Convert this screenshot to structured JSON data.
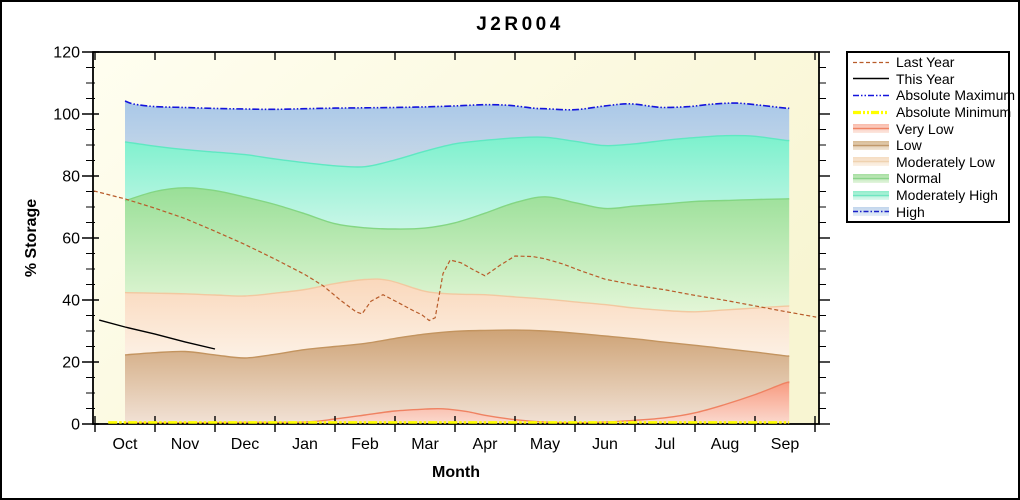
{
  "chart_data": {
    "type": "area",
    "title": "J2R004",
    "xlabel": "Month",
    "ylabel": "% Storage",
    "ylim": [
      0,
      120
    ],
    "y_major_step": 20,
    "y_minor_step": 5,
    "grid": "off",
    "legend_position": "outside-right",
    "categories": [
      "Oct",
      "Nov",
      "Dec",
      "Jan",
      "Feb",
      "Mar",
      "Apr",
      "May",
      "Jun",
      "Jul",
      "Aug",
      "Sep"
    ],
    "yticks": [
      0,
      20,
      40,
      60,
      80,
      100,
      120
    ],
    "boundaries": {
      "absolute_maximum": [
        [
          0,
          104.2
        ],
        [
          0.15,
          103.2
        ],
        [
          0.5,
          102.4
        ],
        [
          1,
          102.1
        ],
        [
          1.5,
          101.8
        ],
        [
          2,
          101.6
        ],
        [
          2.5,
          101.5
        ],
        [
          3,
          101.7
        ],
        [
          3.5,
          101.9
        ],
        [
          4,
          102.0
        ],
        [
          4.5,
          102.1
        ],
        [
          5,
          102.3
        ],
        [
          5.5,
          102.6
        ],
        [
          6,
          103.0
        ],
        [
          6.4,
          102.8
        ],
        [
          6.8,
          101.9
        ],
        [
          7,
          101.7
        ],
        [
          7.5,
          101.4
        ],
        [
          8,
          102.6
        ],
        [
          8.4,
          103.3
        ],
        [
          8.8,
          102.4
        ],
        [
          9,
          102.1
        ],
        [
          9.4,
          102.4
        ],
        [
          9.8,
          103.2
        ],
        [
          10.2,
          103.5
        ],
        [
          10.6,
          102.8
        ],
        [
          11,
          101.9
        ],
        [
          11.07,
          101.9
        ]
      ],
      "moderately_high_top": [
        [
          0,
          91.0
        ],
        [
          0.5,
          89.6
        ],
        [
          1,
          88.5
        ],
        [
          1.5,
          87.7
        ],
        [
          2,
          86.9
        ],
        [
          2.5,
          85.5
        ],
        [
          3,
          84.3
        ],
        [
          3.5,
          83.3
        ],
        [
          4,
          83.0
        ],
        [
          4.5,
          85.2
        ],
        [
          5,
          88.0
        ],
        [
          5.5,
          90.4
        ],
        [
          6,
          91.5
        ],
        [
          6.5,
          92.3
        ],
        [
          7,
          92.5
        ],
        [
          7.5,
          91.2
        ],
        [
          8,
          89.8
        ],
        [
          8.5,
          90.4
        ],
        [
          9,
          91.5
        ],
        [
          9.5,
          92.4
        ],
        [
          10,
          93.0
        ],
        [
          10.5,
          92.8
        ],
        [
          11,
          91.5
        ],
        [
          11.07,
          91.5
        ]
      ],
      "normal_top": [
        [
          0,
          72.0
        ],
        [
          0.5,
          75.0
        ],
        [
          1,
          76.2
        ],
        [
          1.5,
          75.3
        ],
        [
          2,
          73.2
        ],
        [
          2.5,
          70.8
        ],
        [
          3,
          67.8
        ],
        [
          3.5,
          64.6
        ],
        [
          4,
          63.3
        ],
        [
          4.5,
          62.9
        ],
        [
          5,
          63.2
        ],
        [
          5.5,
          64.9
        ],
        [
          6,
          68.0
        ],
        [
          6.5,
          71.4
        ],
        [
          7,
          73.3
        ],
        [
          7.5,
          71.4
        ],
        [
          8,
          69.5
        ],
        [
          8.5,
          70.3
        ],
        [
          9,
          71.0
        ],
        [
          9.5,
          71.8
        ],
        [
          10,
          72.1
        ],
        [
          10.5,
          72.4
        ],
        [
          11,
          72.6
        ],
        [
          11.07,
          72.6
        ]
      ],
      "moderately_low_top": [
        [
          0,
          42.4
        ],
        [
          0.5,
          42.2
        ],
        [
          1,
          42.0
        ],
        [
          1.5,
          41.6
        ],
        [
          2,
          41.3
        ],
        [
          2.5,
          42.2
        ],
        [
          3,
          43.4
        ],
        [
          3.5,
          45.3
        ],
        [
          4,
          46.6
        ],
        [
          4.4,
          46.3
        ],
        [
          5,
          42.8
        ],
        [
          5.5,
          41.9
        ],
        [
          6,
          41.7
        ],
        [
          6.5,
          41.0
        ],
        [
          7,
          40.3
        ],
        [
          7.5,
          39.4
        ],
        [
          8,
          38.5
        ],
        [
          8.5,
          37.4
        ],
        [
          9,
          36.6
        ],
        [
          9.5,
          36.2
        ],
        [
          10,
          36.8
        ],
        [
          10.5,
          37.4
        ],
        [
          11,
          38.0
        ],
        [
          11.07,
          38.0
        ]
      ],
      "low_top": [
        [
          0,
          22.3
        ],
        [
          0.5,
          23.0
        ],
        [
          1,
          23.4
        ],
        [
          1.5,
          22.3
        ],
        [
          2,
          21.3
        ],
        [
          2.5,
          22.5
        ],
        [
          3,
          24.0
        ],
        [
          3.5,
          25.0
        ],
        [
          4,
          26.0
        ],
        [
          4.5,
          27.6
        ],
        [
          5,
          29.0
        ],
        [
          5.5,
          29.9
        ],
        [
          6,
          30.2
        ],
        [
          6.5,
          30.3
        ],
        [
          7,
          30.0
        ],
        [
          7.5,
          29.3
        ],
        [
          8,
          28.4
        ],
        [
          8.5,
          27.5
        ],
        [
          9,
          26.4
        ],
        [
          9.5,
          25.4
        ],
        [
          10,
          24.3
        ],
        [
          10.5,
          23.2
        ],
        [
          11,
          22.0
        ],
        [
          11.07,
          22.0
        ]
      ],
      "very_low_top": [
        [
          0,
          0.4
        ],
        [
          1,
          0.4
        ],
        [
          2,
          0.5
        ],
        [
          3,
          0.6
        ],
        [
          3.5,
          1.6
        ],
        [
          4,
          2.9
        ],
        [
          4.5,
          4.2
        ],
        [
          5,
          4.8
        ],
        [
          5.3,
          4.9
        ],
        [
          5.7,
          4.0
        ],
        [
          6,
          2.8
        ],
        [
          6.5,
          1.4
        ],
        [
          7,
          0.6
        ],
        [
          7.5,
          0.4
        ],
        [
          8,
          0.6
        ],
        [
          8.5,
          1.2
        ],
        [
          9,
          2.0
        ],
        [
          9.5,
          3.6
        ],
        [
          10,
          6.3
        ],
        [
          10.5,
          9.5
        ],
        [
          11,
          13.2
        ],
        [
          11.07,
          13.3
        ]
      ],
      "floor": [
        [
          0,
          0.15
        ],
        [
          11.07,
          0.15
        ]
      ]
    },
    "bands": [
      {
        "name": "High",
        "slug": "high",
        "top": "absolute_maximum",
        "bottom": "moderately_high_top",
        "fill_top": "#a9c8e8",
        "fill_bottom": "#c9d9e7",
        "edge": null
      },
      {
        "name": "Moderately High",
        "slug": "moderately-high",
        "top": "moderately_high_top",
        "bottom": "normal_top",
        "fill_top": "#7cf1cd",
        "fill_bottom": "#c9f6e7",
        "edge": "#5fe8c2"
      },
      {
        "name": "Normal",
        "slug": "normal",
        "top": "normal_top",
        "bottom": "moderately_low_top",
        "fill_top": "#99df97",
        "fill_bottom": "#e3f6d7",
        "edge": "#83d683"
      },
      {
        "name": "Moderately Low",
        "slug": "moderately-low",
        "top": "moderately_low_top",
        "bottom": "low_top",
        "fill_top": "#fad8bc",
        "fill_bottom": "#fcf1e5",
        "edge": "#f2c8a0"
      },
      {
        "name": "Low",
        "slug": "low",
        "top": "low_top",
        "bottom": "very_low_top",
        "fill_top": "#cea376",
        "fill_bottom": "#f1e1d4",
        "edge": "#c3945f"
      },
      {
        "name": "Very Low",
        "slug": "very-low",
        "top": "very_low_top",
        "bottom": "floor",
        "fill_top": "#f89c82",
        "fill_bottom": "#fbd9ce",
        "edge": "#ef8262"
      }
    ],
    "lines": [
      {
        "name": "Last Year",
        "slug": "last-year",
        "color": "#b85c2a",
        "width": 1.2,
        "dash": "4 2.5",
        "smooth": false,
        "points": [
          [
            -0.52,
            75.2
          ],
          [
            0,
            72.6
          ],
          [
            0.5,
            69.6
          ],
          [
            1,
            66.3
          ],
          [
            1.5,
            62.2
          ],
          [
            2,
            57.9
          ],
          [
            2.5,
            53.2
          ],
          [
            3,
            48.2
          ],
          [
            3.3,
            44.6
          ],
          [
            3.6,
            39.8
          ],
          [
            3.85,
            36.2
          ],
          [
            3.95,
            35.5
          ],
          [
            4.1,
            39.6
          ],
          [
            4.3,
            41.7
          ],
          [
            4.55,
            39.2
          ],
          [
            4.8,
            36.6
          ],
          [
            4.95,
            35.2
          ],
          [
            5.07,
            33.4
          ],
          [
            5.17,
            34.3
          ],
          [
            5.3,
            48.5
          ],
          [
            5.42,
            52.9
          ],
          [
            5.6,
            52.0
          ],
          [
            5.8,
            49.8
          ],
          [
            6,
            47.8
          ],
          [
            6.25,
            51.2
          ],
          [
            6.5,
            54.2
          ],
          [
            6.8,
            54.0
          ],
          [
            7,
            53.3
          ],
          [
            7.3,
            51.6
          ],
          [
            7.6,
            49.4
          ],
          [
            8,
            46.7
          ],
          [
            8.5,
            44.8
          ],
          [
            9,
            43.3
          ],
          [
            9.5,
            41.5
          ],
          [
            10,
            39.9
          ],
          [
            10.5,
            38.1
          ],
          [
            11,
            36.3
          ],
          [
            11.52,
            34.5
          ]
        ]
      },
      {
        "name": "This Year",
        "slug": "this-year",
        "color": "#000000",
        "width": 1.4,
        "dash": null,
        "smooth": false,
        "points": [
          [
            -0.43,
            33.5
          ],
          [
            0,
            31.3
          ],
          [
            0.5,
            29.0
          ],
          [
            1,
            26.5
          ],
          [
            1.5,
            24.2
          ]
        ]
      },
      {
        "name": "Absolute Maximum",
        "slug": "absolute-maximum",
        "color": "#1414dc",
        "width": 1.6,
        "dash": "7 2 1.5 2 1.5 2",
        "smooth": true,
        "points_ref": "absolute_maximum"
      },
      {
        "name": "Absolute Minimum",
        "slug": "absolute-minimum",
        "color": "#ffff00",
        "width": 2.6,
        "dash": "9 2 2.5 2 2.5 2",
        "smooth": false,
        "points": [
          [
            -0.28,
            0.5
          ],
          [
            11.07,
            0.5
          ]
        ]
      }
    ],
    "plot_background": {
      "from": "#fffef0",
      "to": "#f8f5d2"
    },
    "frame_color": "#000000"
  },
  "legend": {
    "items": [
      {
        "label": "Last Year",
        "slug": "last-year",
        "kind": "line",
        "color": "#b85c2a",
        "width": 1.2,
        "dash": "4 2.5"
      },
      {
        "label": "This Year",
        "slug": "this-year",
        "kind": "line",
        "color": "#000000",
        "width": 1.4,
        "dash": null
      },
      {
        "label": "Absolute Maximum",
        "slug": "absolute-maximum",
        "kind": "line",
        "color": "#1414dc",
        "width": 1.6,
        "dash": "6 2 1.5 2 1.5 2"
      },
      {
        "label": "Absolute Minimum",
        "slug": "absolute-minimum",
        "kind": "line",
        "color": "#ffff00",
        "width": 3.2,
        "dash": "8 2 2 2 2 2"
      },
      {
        "label": "Very Low",
        "slug": "very-low",
        "kind": "band",
        "fill_top": "#f9bcac",
        "fill_bottom": "#fce7df",
        "line_color": "#ef8465",
        "line_dash": null
      },
      {
        "label": "Low",
        "slug": "low",
        "kind": "band",
        "fill_top": "#d8bb94",
        "fill_bottom": "#f0e4d5",
        "line_color": "#c0986a",
        "line_dash": null
      },
      {
        "label": "Moderately Low",
        "slug": "moderately-low",
        "kind": "band",
        "fill_top": "#f5ddc2",
        "fill_bottom": "#fbf1e6",
        "line_color": "#efd2b0",
        "line_dash": null
      },
      {
        "label": "Normal",
        "slug": "normal",
        "kind": "band",
        "fill_top": "#a7dfa2",
        "fill_bottom": "#e3f5dd",
        "line_color": "#8bd48b",
        "line_dash": null
      },
      {
        "label": "Moderately High",
        "slug": "moderately-high",
        "kind": "band",
        "fill_top": "#8eedca",
        "fill_bottom": "#dff8ef",
        "line_color": "#6fe6c0",
        "line_dash": null
      },
      {
        "label": "High",
        "slug": "high",
        "kind": "band",
        "fill_top": "#c2d6ec",
        "fill_bottom": "#e5eef7",
        "line_color": "#1a20c8",
        "line_dash": "5 2 1.5 2"
      }
    ]
  }
}
